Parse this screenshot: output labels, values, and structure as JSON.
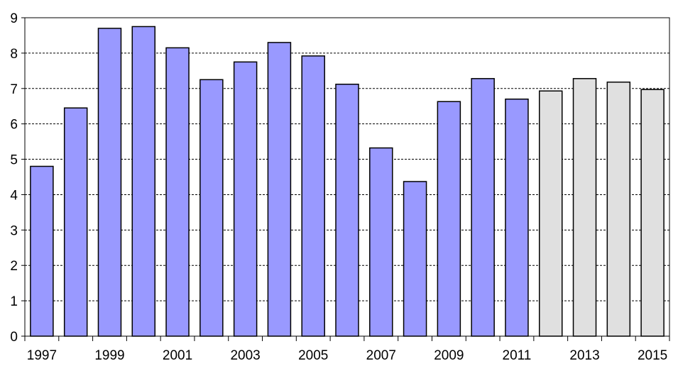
{
  "chart_data": {
    "type": "bar",
    "categories": [
      "1997",
      "1998",
      "1999",
      "2000",
      "2001",
      "2002",
      "2003",
      "2004",
      "2005",
      "2006",
      "2007",
      "2008",
      "2009",
      "2010",
      "2011",
      "2012",
      "2013",
      "2014",
      "2015"
    ],
    "values": [
      4.8,
      6.45,
      8.7,
      8.75,
      8.15,
      7.25,
      7.75,
      8.3,
      7.92,
      7.12,
      5.32,
      4.37,
      6.63,
      7.28,
      6.7,
      6.93,
      7.28,
      7.18,
      6.97
    ],
    "value_kind": [
      "actual",
      "actual",
      "actual",
      "actual",
      "actual",
      "actual",
      "actual",
      "actual",
      "actual",
      "actual",
      "actual",
      "actual",
      "actual",
      "actual",
      "actual",
      "forecast",
      "forecast",
      "forecast",
      "forecast"
    ],
    "colors": {
      "actual": "#9999ff",
      "forecast": "#e0e0e0",
      "outline": "#000000",
      "grid": "#000000"
    },
    "x_tick_labels": [
      "1997",
      "1999",
      "2001",
      "2003",
      "2005",
      "2007",
      "2009",
      "2011",
      "2013",
      "2015"
    ],
    "y_ticks": [
      0,
      1,
      2,
      3,
      4,
      5,
      6,
      7,
      8,
      9
    ],
    "ylim": [
      0,
      9
    ],
    "grid": "horizontal-dashed",
    "title": "",
    "xlabel": "",
    "ylabel": ""
  }
}
